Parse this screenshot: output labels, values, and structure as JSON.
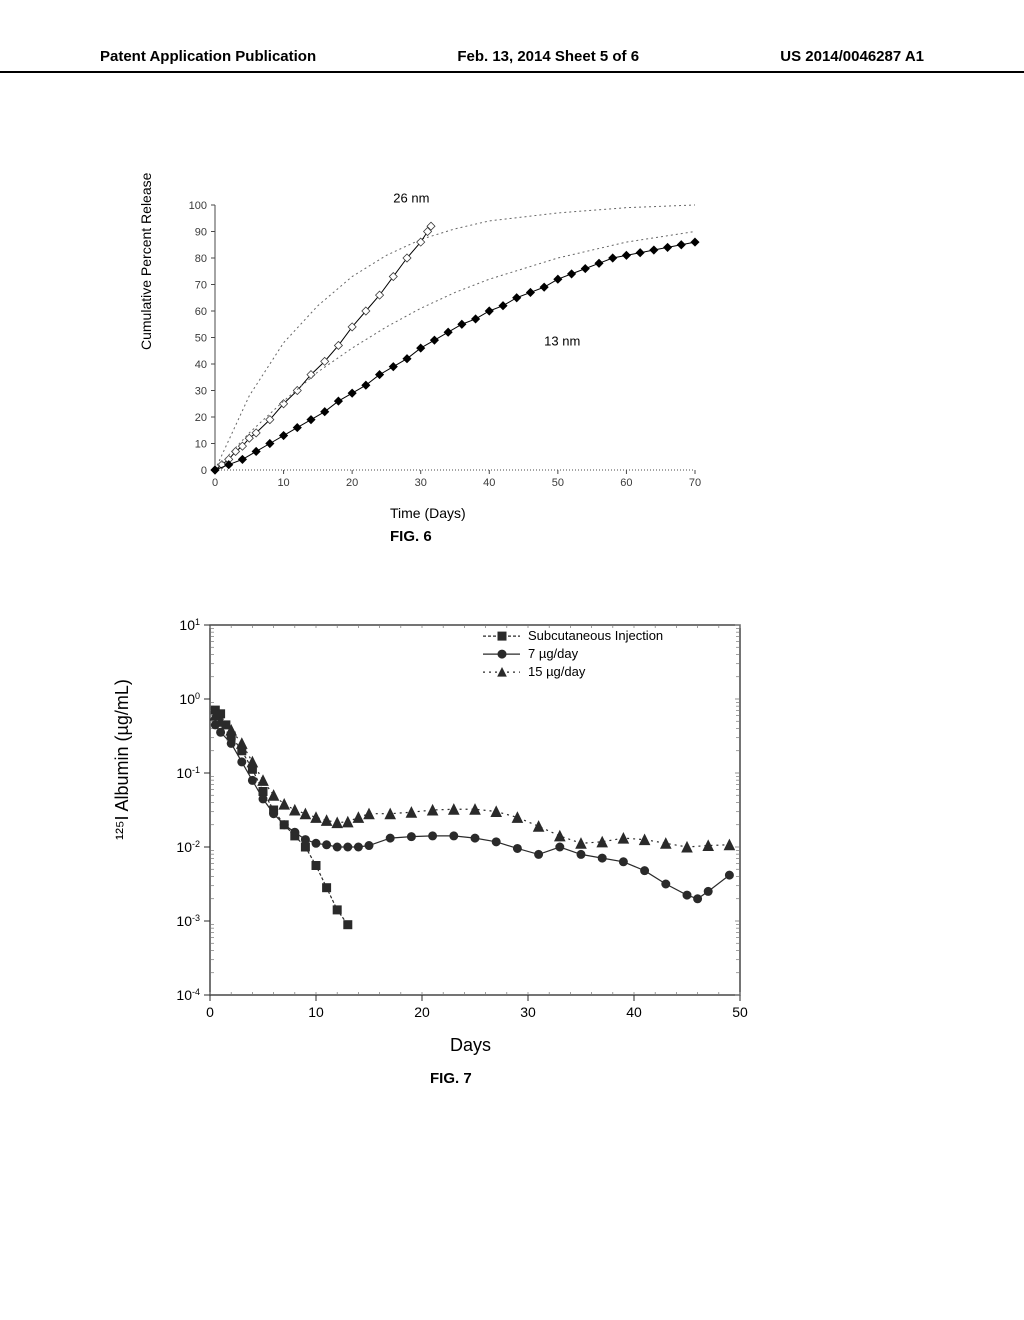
{
  "header": {
    "left": "Patent Application Publication",
    "center": "Feb. 13, 2014  Sheet 5 of 6",
    "right": "US 2014/0046287 A1"
  },
  "fig6": {
    "caption": "FIG. 6",
    "xlabel": "Time (Days)",
    "ylabel": "Cumulative Percent Release",
    "xlim": [
      0,
      70
    ],
    "ylim": [
      0,
      100
    ],
    "xtick_step": 10,
    "ytick_step": 10,
    "background_color": "#ffffff",
    "axis_color": "#000000",
    "series_26nm": {
      "label": "26 nm",
      "label_pos": [
        26,
        101
      ],
      "marker": "diamond",
      "marker_size": 4,
      "line_width": 1,
      "point_color": "#3a3a3a",
      "line_color": "#000000",
      "fit_dash": "2,3",
      "data": [
        [
          0,
          0
        ],
        [
          1,
          2
        ],
        [
          2,
          4
        ],
        [
          3,
          7
        ],
        [
          4,
          9
        ],
        [
          5,
          12
        ],
        [
          6,
          14
        ],
        [
          8,
          19
        ],
        [
          10,
          25
        ],
        [
          12,
          30
        ],
        [
          14,
          36
        ],
        [
          16,
          41
        ],
        [
          18,
          47
        ],
        [
          20,
          54
        ],
        [
          22,
          60
        ],
        [
          24,
          66
        ],
        [
          26,
          73
        ],
        [
          28,
          80
        ],
        [
          30,
          86
        ],
        [
          31,
          90
        ],
        [
          31.5,
          92
        ]
      ],
      "fit": [
        [
          0,
          0
        ],
        [
          5,
          28
        ],
        [
          10,
          48
        ],
        [
          15,
          62
        ],
        [
          20,
          73
        ],
        [
          25,
          81
        ],
        [
          30,
          87
        ],
        [
          35,
          91
        ],
        [
          40,
          94
        ],
        [
          50,
          97
        ],
        [
          60,
          99
        ],
        [
          70,
          100
        ]
      ]
    },
    "series_13nm": {
      "label": "13 nm",
      "label_pos": [
        48,
        47
      ],
      "marker": "diamond-filled",
      "marker_size": 4,
      "line_width": 1,
      "point_color": "#000000",
      "line_color": "#000000",
      "fit_dash": "2,3",
      "data": [
        [
          0,
          0
        ],
        [
          2,
          2
        ],
        [
          4,
          4
        ],
        [
          6,
          7
        ],
        [
          8,
          10
        ],
        [
          10,
          13
        ],
        [
          12,
          16
        ],
        [
          14,
          19
        ],
        [
          16,
          22
        ],
        [
          18,
          26
        ],
        [
          20,
          29
        ],
        [
          22,
          32
        ],
        [
          24,
          36
        ],
        [
          26,
          39
        ],
        [
          28,
          42
        ],
        [
          30,
          46
        ],
        [
          32,
          49
        ],
        [
          34,
          52
        ],
        [
          36,
          55
        ],
        [
          38,
          57
        ],
        [
          40,
          60
        ],
        [
          42,
          62
        ],
        [
          44,
          65
        ],
        [
          46,
          67
        ],
        [
          48,
          69
        ],
        [
          50,
          72
        ],
        [
          52,
          74
        ],
        [
          54,
          76
        ],
        [
          56,
          78
        ],
        [
          58,
          80
        ],
        [
          60,
          81
        ],
        [
          62,
          82
        ],
        [
          64,
          83
        ],
        [
          66,
          84
        ],
        [
          68,
          85
        ],
        [
          70,
          86
        ]
      ],
      "fit": [
        [
          0,
          0
        ],
        [
          5,
          14
        ],
        [
          10,
          26
        ],
        [
          15,
          37
        ],
        [
          20,
          46
        ],
        [
          25,
          54
        ],
        [
          30,
          61
        ],
        [
          35,
          67
        ],
        [
          40,
          72
        ],
        [
          45,
          76
        ],
        [
          50,
          80
        ],
        [
          55,
          83
        ],
        [
          60,
          86
        ],
        [
          65,
          88
        ],
        [
          70,
          90
        ]
      ]
    }
  },
  "fig7": {
    "caption": "FIG. 7",
    "xlabel": "Days",
    "ylabel": "¹²⁵I Albumin (µg/mL)",
    "xlim": [
      0,
      50
    ],
    "ylim_exp": [
      -4,
      1
    ],
    "xtick_step": 10,
    "background_color": "#ffffff",
    "axis_color": "#000000",
    "tick_color": "#3a3a3a",
    "legend": {
      "x": 30,
      "y_exp": 0.85,
      "items": [
        {
          "label": "Subcutaneous Injection",
          "marker": "square",
          "dash": "3,2"
        },
        {
          "label": "7 µg/day",
          "marker": "circle",
          "dash": "none"
        },
        {
          "label": "15 µg/day",
          "marker": "triangle",
          "dash": "2,4"
        }
      ]
    },
    "series_subq": {
      "marker": "square",
      "marker_size": 4,
      "line_dash": "3,2",
      "color": "#2a2a2a",
      "data_exp": [
        [
          0.5,
          -0.15
        ],
        [
          1,
          -0.2
        ],
        [
          1.5,
          -0.35
        ],
        [
          2,
          -0.5
        ],
        [
          3,
          -0.7
        ],
        [
          4,
          -0.95
        ],
        [
          5,
          -1.25
        ],
        [
          6,
          -1.5
        ],
        [
          7,
          -1.7
        ],
        [
          8,
          -1.85
        ],
        [
          9,
          -2.0
        ],
        [
          10,
          -2.25
        ],
        [
          11,
          -2.55
        ],
        [
          12,
          -2.85
        ],
        [
          13,
          -3.05
        ]
      ]
    },
    "series_7": {
      "marker": "circle",
      "marker_size": 4,
      "line_dash": "none",
      "color": "#2a2a2a",
      "data_exp": [
        [
          0.5,
          -0.35
        ],
        [
          1,
          -0.45
        ],
        [
          2,
          -0.6
        ],
        [
          3,
          -0.85
        ],
        [
          4,
          -1.1
        ],
        [
          5,
          -1.35
        ],
        [
          6,
          -1.55
        ],
        [
          7,
          -1.7
        ],
        [
          8,
          -1.8
        ],
        [
          9,
          -1.9
        ],
        [
          10,
          -1.95
        ],
        [
          11,
          -1.97
        ],
        [
          12,
          -2.0
        ],
        [
          13,
          -2.0
        ],
        [
          14,
          -2.0
        ],
        [
          15,
          -1.98
        ],
        [
          17,
          -1.88
        ],
        [
          19,
          -1.86
        ],
        [
          21,
          -1.85
        ],
        [
          23,
          -1.85
        ],
        [
          25,
          -1.88
        ],
        [
          27,
          -1.93
        ],
        [
          29,
          -2.02
        ],
        [
          31,
          -2.1
        ],
        [
          33,
          -2.0
        ],
        [
          35,
          -2.1
        ],
        [
          37,
          -2.15
        ],
        [
          39,
          -2.2
        ],
        [
          41,
          -2.32
        ],
        [
          43,
          -2.5
        ],
        [
          45,
          -2.65
        ],
        [
          46,
          -2.7
        ],
        [
          47,
          -2.6
        ],
        [
          49,
          -2.38
        ]
      ]
    },
    "series_15": {
      "marker": "triangle",
      "marker_size": 5,
      "line_dash": "2,4",
      "color": "#2a2a2a",
      "data_exp": [
        [
          0.5,
          -0.22
        ],
        [
          1,
          -0.3
        ],
        [
          2,
          -0.42
        ],
        [
          3,
          -0.6
        ],
        [
          4,
          -0.85
        ],
        [
          5,
          -1.1
        ],
        [
          6,
          -1.3
        ],
        [
          7,
          -1.42
        ],
        [
          8,
          -1.5
        ],
        [
          9,
          -1.55
        ],
        [
          10,
          -1.6
        ],
        [
          11,
          -1.64
        ],
        [
          12,
          -1.67
        ],
        [
          13,
          -1.66
        ],
        [
          14,
          -1.6
        ],
        [
          15,
          -1.55
        ],
        [
          17,
          -1.55
        ],
        [
          19,
          -1.53
        ],
        [
          21,
          -1.5
        ],
        [
          23,
          -1.49
        ],
        [
          25,
          -1.49
        ],
        [
          27,
          -1.52
        ],
        [
          29,
          -1.6
        ],
        [
          31,
          -1.72
        ],
        [
          33,
          -1.85
        ],
        [
          35,
          -1.95
        ],
        [
          37,
          -1.93
        ],
        [
          39,
          -1.88
        ],
        [
          41,
          -1.9
        ],
        [
          43,
          -1.95
        ],
        [
          45,
          -2.0
        ],
        [
          47,
          -1.98
        ],
        [
          49,
          -1.97
        ]
      ]
    }
  }
}
